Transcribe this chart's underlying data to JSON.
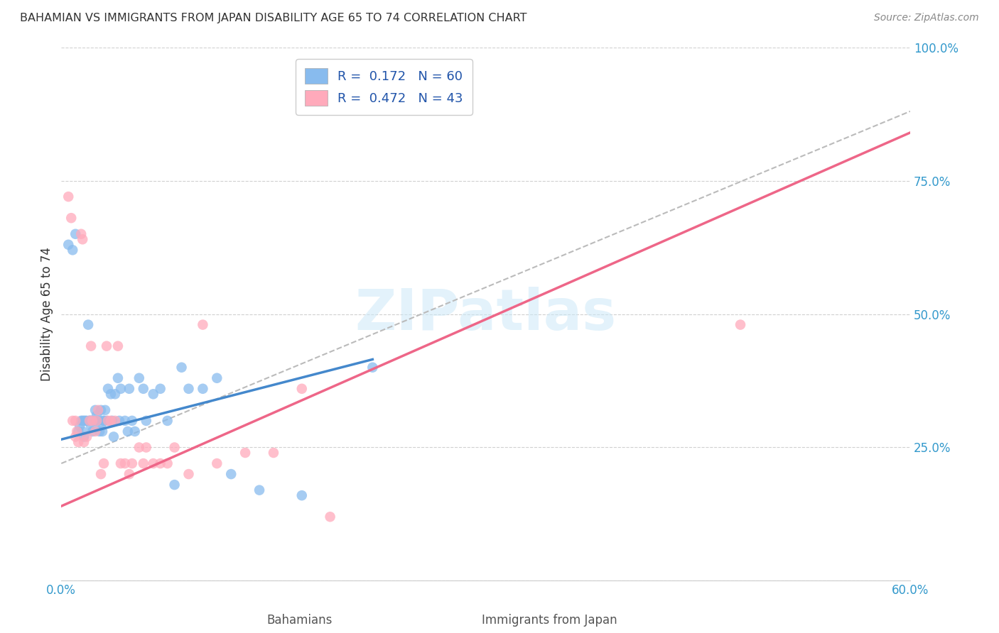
{
  "title": "BAHAMIAN VS IMMIGRANTS FROM JAPAN DISABILITY AGE 65 TO 74 CORRELATION CHART",
  "source": "Source: ZipAtlas.com",
  "ylabel": "Disability Age 65 to 74",
  "xlim": [
    0,
    0.6
  ],
  "ylim": [
    0,
    1.0
  ],
  "xticks": [
    0.0,
    0.1,
    0.2,
    0.3,
    0.4,
    0.5,
    0.6
  ],
  "xticklabels": [
    "0.0%",
    "",
    "",
    "",
    "",
    "",
    "60.0%"
  ],
  "yticks": [
    0.0,
    0.25,
    0.5,
    0.75,
    1.0
  ],
  "yticklabels": [
    "",
    "25.0%",
    "50.0%",
    "75.0%",
    "100.0%"
  ],
  "background_color": "#ffffff",
  "grid_color": "#d0d0d0",
  "watermark": "ZIPatlas",
  "blue_R": 0.172,
  "blue_N": 60,
  "pink_R": 0.472,
  "pink_N": 43,
  "blue_color": "#88bbee",
  "pink_color": "#ffaabb",
  "blue_line_color": "#4488cc",
  "pink_line_color": "#ee6688",
  "dashed_line_color": "#bbbbbb",
  "blue_scatter_x": [
    0.005,
    0.008,
    0.01,
    0.012,
    0.013,
    0.014,
    0.015,
    0.015,
    0.016,
    0.016,
    0.017,
    0.018,
    0.019,
    0.02,
    0.02,
    0.021,
    0.021,
    0.022,
    0.022,
    0.023,
    0.024,
    0.025,
    0.025,
    0.026,
    0.027,
    0.028,
    0.028,
    0.029,
    0.03,
    0.03,
    0.031,
    0.032,
    0.033,
    0.035,
    0.036,
    0.037,
    0.038,
    0.04,
    0.041,
    0.042,
    0.045,
    0.047,
    0.048,
    0.05,
    0.052,
    0.055,
    0.058,
    0.06,
    0.065,
    0.07,
    0.075,
    0.08,
    0.085,
    0.09,
    0.1,
    0.11,
    0.12,
    0.14,
    0.17,
    0.22
  ],
  "blue_scatter_y": [
    0.63,
    0.62,
    0.65,
    0.28,
    0.29,
    0.3,
    0.3,
    0.28,
    0.27,
    0.3,
    0.3,
    0.3,
    0.48,
    0.3,
    0.3,
    0.29,
    0.3,
    0.28,
    0.3,
    0.3,
    0.32,
    0.3,
    0.31,
    0.3,
    0.28,
    0.29,
    0.32,
    0.28,
    0.3,
    0.3,
    0.32,
    0.3,
    0.36,
    0.35,
    0.3,
    0.27,
    0.35,
    0.38,
    0.3,
    0.36,
    0.3,
    0.28,
    0.36,
    0.3,
    0.28,
    0.38,
    0.36,
    0.3,
    0.35,
    0.36,
    0.3,
    0.18,
    0.4,
    0.36,
    0.36,
    0.38,
    0.2,
    0.17,
    0.16,
    0.4
  ],
  "pink_scatter_x": [
    0.005,
    0.007,
    0.008,
    0.01,
    0.01,
    0.011,
    0.012,
    0.014,
    0.015,
    0.016,
    0.018,
    0.02,
    0.021,
    0.022,
    0.024,
    0.025,
    0.026,
    0.028,
    0.03,
    0.032,
    0.033,
    0.035,
    0.038,
    0.04,
    0.042,
    0.045,
    0.048,
    0.05,
    0.055,
    0.058,
    0.06,
    0.065,
    0.07,
    0.075,
    0.08,
    0.09,
    0.1,
    0.11,
    0.13,
    0.15,
    0.17,
    0.19,
    0.48
  ],
  "pink_scatter_y": [
    0.72,
    0.68,
    0.3,
    0.3,
    0.27,
    0.28,
    0.26,
    0.65,
    0.64,
    0.26,
    0.27,
    0.3,
    0.44,
    0.3,
    0.28,
    0.3,
    0.32,
    0.2,
    0.22,
    0.44,
    0.3,
    0.3,
    0.3,
    0.44,
    0.22,
    0.22,
    0.2,
    0.22,
    0.25,
    0.22,
    0.25,
    0.22,
    0.22,
    0.22,
    0.25,
    0.2,
    0.48,
    0.22,
    0.24,
    0.24,
    0.36,
    0.12,
    0.48
  ],
  "blue_line_x": [
    0.0,
    0.22
  ],
  "blue_line_y": [
    0.265,
    0.415
  ],
  "pink_line_x": [
    0.0,
    0.6
  ],
  "pink_line_y": [
    0.14,
    0.84
  ],
  "dash_line_x": [
    0.0,
    0.6
  ],
  "dash_line_y": [
    0.22,
    0.88
  ]
}
